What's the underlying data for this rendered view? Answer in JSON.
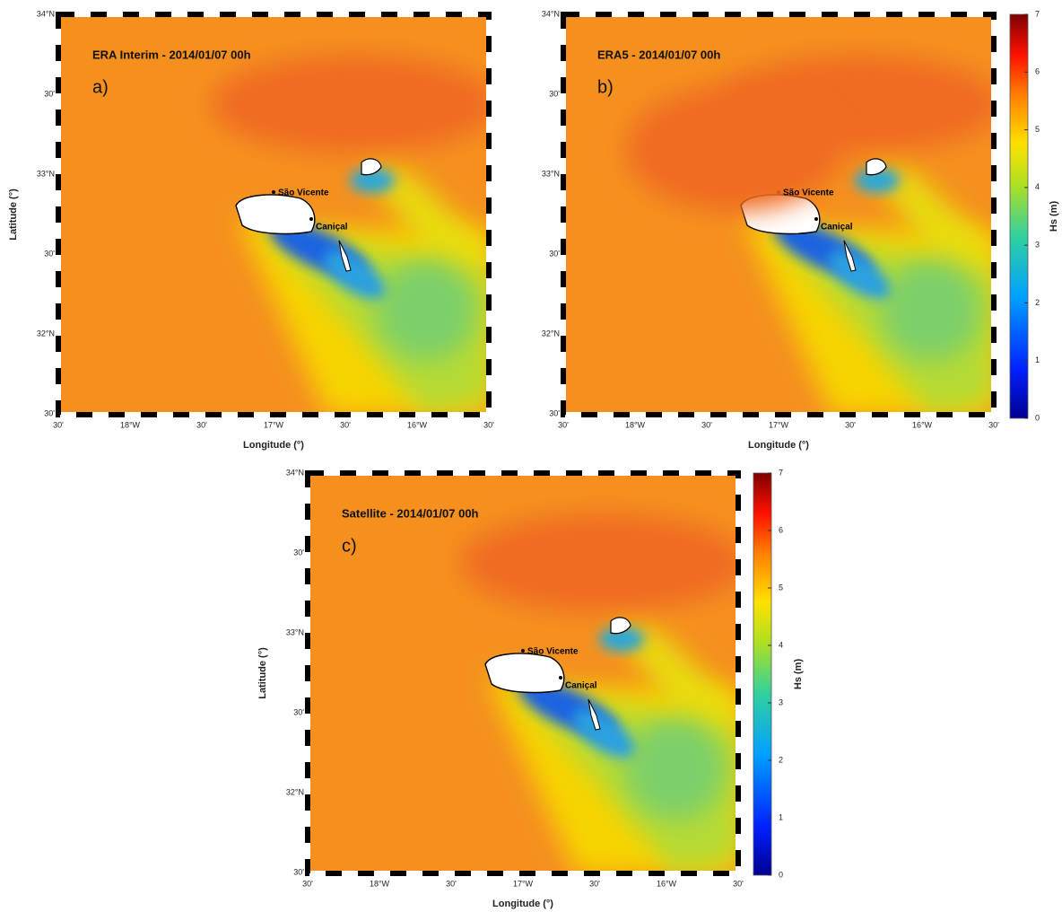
{
  "panels": [
    {
      "title": "ERA Interim - 2014/01/07 00h",
      "letter": "a)",
      "xlabel": "Longitude (°)",
      "ylabel": "Latitude (°)",
      "lat_ticks": [
        "34°N",
        "30'",
        "33°N",
        "30'",
        "32°N",
        "30'"
      ],
      "lon_ticks": [
        "30'",
        "18°W",
        "30'",
        "17°W",
        "30'",
        "16°W",
        "30'"
      ],
      "places": [
        "São Vicente",
        "Caniçal"
      ]
    },
    {
      "title": "ERA5 - 2014/01/07 00h",
      "letter": "b)",
      "xlabel": "Longitude (°)",
      "lat_ticks": [
        "34°N",
        "30'",
        "33°N",
        "30'",
        "32°N",
        "30'"
      ],
      "lon_ticks": [
        "30'",
        "18°W",
        "30'",
        "17°W",
        "30'",
        "16°W",
        "30'"
      ],
      "places": [
        "São Vicente",
        "Caniçal"
      ]
    },
    {
      "title": "Satellite - 2014/01/07 00h",
      "letter": "c)",
      "xlabel": "Longitude (°)",
      "ylabel": "Latitude (°)",
      "lat_ticks": [
        "34°N",
        "30'",
        "33°N",
        "30'",
        "32°N",
        "30'"
      ],
      "lon_ticks": [
        "30'",
        "18°W",
        "30'",
        "17°W",
        "30'",
        "16°W",
        "30'"
      ],
      "places": [
        "São Vicente",
        "Caniçal"
      ]
    }
  ],
  "colorbars": [
    {
      "label": "Hs (m)",
      "ticks": [
        0,
        1,
        2,
        3,
        4,
        5,
        6,
        7
      ]
    },
    {
      "label": "Hs (m)",
      "ticks": [
        0,
        1,
        2,
        3,
        4,
        5,
        6,
        7
      ]
    }
  ]
}
